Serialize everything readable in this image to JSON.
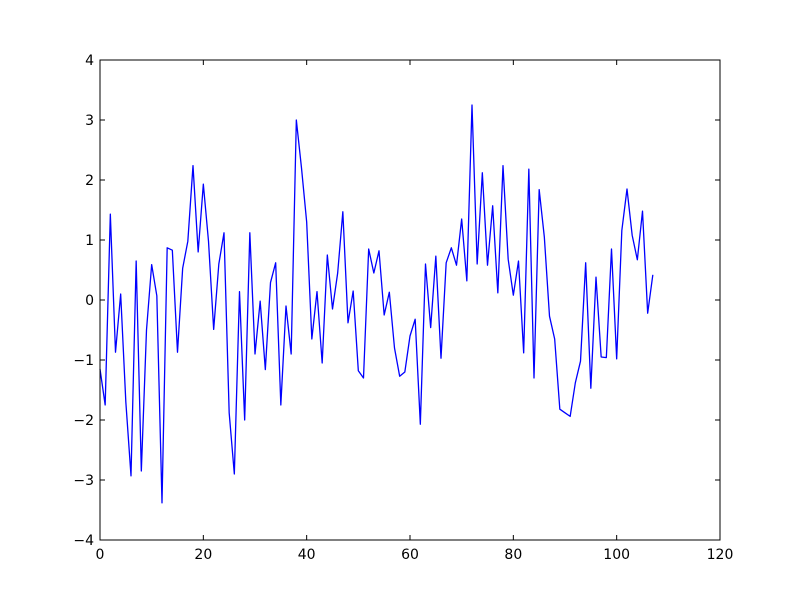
{
  "chart_data": {
    "type": "line",
    "title": "",
    "xlabel": "",
    "ylabel": "",
    "xlim": [
      0,
      120
    ],
    "ylim": [
      -4,
      4
    ],
    "x_ticks": [
      0,
      20,
      40,
      60,
      80,
      100,
      120
    ],
    "y_ticks": [
      -4,
      -3,
      -2,
      -1,
      0,
      1,
      2,
      3,
      4
    ],
    "x_tick_labels": [
      "0",
      "20",
      "40",
      "60",
      "80",
      "100",
      "120"
    ],
    "y_tick_labels": [
      "−4",
      "−3",
      "−2",
      "−1",
      "0",
      "1",
      "2",
      "3",
      "4"
    ],
    "grid": false,
    "series": [
      {
        "color": "#0000ff",
        "x": [
          0,
          1,
          2,
          3,
          4,
          5,
          6,
          7,
          8,
          9,
          10,
          11,
          12,
          13,
          14,
          15,
          16,
          17,
          18,
          19,
          20,
          21,
          22,
          23,
          24,
          25,
          26,
          27,
          28,
          29,
          30,
          31,
          32,
          33,
          34,
          35,
          36,
          37,
          38,
          39,
          40,
          41,
          42,
          43,
          44,
          45,
          46,
          47,
          48,
          49,
          50,
          51,
          52,
          53,
          54,
          55,
          56,
          57,
          58,
          59,
          60,
          61,
          62,
          63,
          64,
          65,
          66,
          67,
          68,
          69,
          70,
          71,
          72,
          73,
          74,
          75,
          76,
          77,
          78,
          79,
          80,
          81,
          82,
          83,
          84,
          85,
          86,
          87,
          88,
          89,
          90,
          91,
          92,
          93,
          94,
          95,
          96,
          97,
          98,
          99,
          100,
          101,
          102,
          103,
          104,
          105,
          106,
          107
        ],
        "y": [
          -1.15,
          -1.75,
          1.43,
          -0.87,
          0.1,
          -1.7,
          -2.93,
          0.65,
          -2.85,
          -0.5,
          0.59,
          0.07,
          -3.38,
          0.87,
          0.83,
          -0.87,
          0.53,
          0.98,
          2.24,
          0.8,
          1.93,
          0.98,
          -0.49,
          0.6,
          1.12,
          -1.88,
          -2.9,
          0.14,
          -2.0,
          1.12,
          -0.9,
          -0.02,
          -1.16,
          0.29,
          0.62,
          -1.75,
          -0.1,
          -0.9,
          3.0,
          2.2,
          1.3,
          -0.65,
          0.14,
          -1.05,
          0.75,
          -0.15,
          0.45,
          1.47,
          -0.38,
          0.15,
          -1.18,
          -1.3,
          0.85,
          0.45,
          0.82,
          -0.25,
          0.13,
          -0.8,
          -1.27,
          -1.2,
          -0.6,
          -0.32,
          -2.07,
          0.6,
          -0.46,
          0.73,
          -0.97,
          0.62,
          0.87,
          0.58,
          1.35,
          0.32,
          3.25,
          0.6,
          2.12,
          0.58,
          1.57,
          0.12,
          2.24,
          0.68,
          0.08,
          0.65,
          -0.88,
          2.18,
          -1.3,
          1.84,
          1.05,
          -0.27,
          -0.65,
          -1.82,
          -1.88,
          -1.94,
          -1.38,
          -1.02,
          0.62,
          -1.47,
          0.38,
          -0.95,
          -0.96,
          0.85,
          -0.98,
          1.16,
          1.85,
          1.08,
          0.67,
          1.48,
          -0.22,
          0.42
        ]
      }
    ]
  }
}
